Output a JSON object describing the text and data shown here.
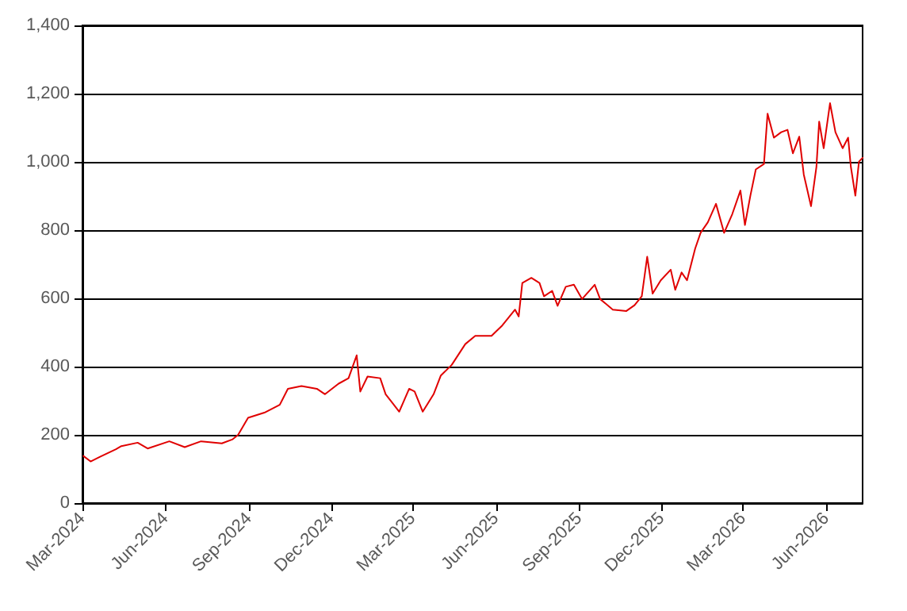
{
  "chart_data": {
    "type": "line",
    "xlim": [
      "2024-03-01",
      "2026-07-11"
    ],
    "ylim": [
      0,
      1400
    ],
    "xticks": [
      {
        "value": "2024-03-01",
        "label": "Mar-2024"
      },
      {
        "value": "2024-06-01",
        "label": "Jun-2024"
      },
      {
        "value": "2024-09-01",
        "label": "Sep-2024"
      },
      {
        "value": "2024-12-01",
        "label": "Dec-2024"
      },
      {
        "value": "2025-03-01",
        "label": "Mar-2025"
      },
      {
        "value": "2025-06-01",
        "label": "Jun-2025"
      },
      {
        "value": "2025-09-01",
        "label": "Sep-2025"
      },
      {
        "value": "2025-12-01",
        "label": "Dec-2025"
      },
      {
        "value": "2026-03-01",
        "label": "Mar-2026"
      },
      {
        "value": "2026-06-01",
        "label": "Jun-2026"
      }
    ],
    "yticks": [
      0,
      200,
      400,
      600,
      800,
      {
        "value": 1000,
        "label": "1,000"
      },
      {
        "value": 1200,
        "label": "1,200"
      },
      {
        "value": 1400,
        "label": "1,400"
      }
    ],
    "grid": "y",
    "marker": "none",
    "line_style": "solid",
    "x": [
      "2024-03-02",
      "2024-03-10",
      "2024-03-20",
      "2024-04-07",
      "2024-04-13",
      "2024-05-01",
      "2024-05-12",
      "2024-06-05",
      "2024-06-22",
      "2024-07-10",
      "2024-08-02",
      "2024-08-14",
      "2024-08-20",
      "2024-08-31",
      "2024-09-18",
      "2024-10-05",
      "2024-10-14",
      "2024-10-29",
      "2024-11-15",
      "2024-11-24",
      "2024-12-09",
      "2024-12-20",
      "2024-12-29",
      "2025-01-02",
      "2025-01-10",
      "2025-01-24",
      "2025-01-30",
      "2025-02-14",
      "2025-02-25",
      "2025-03-03",
      "2025-03-12",
      "2025-03-24",
      "2025-04-01",
      "2025-04-13",
      "2025-04-28",
      "2025-05-09",
      "2025-05-27",
      "2025-06-08",
      "2025-06-22",
      "2025-06-26",
      "2025-06-30",
      "2025-07-10",
      "2025-07-19",
      "2025-07-24",
      "2025-08-02",
      "2025-08-08",
      "2025-08-17",
      "2025-08-26",
      "2025-09-04",
      "2025-09-18",
      "2025-09-24",
      "2025-10-08",
      "2025-10-23",
      "2025-11-01",
      "2025-11-09",
      "2025-11-15",
      "2025-11-21",
      "2025-11-30",
      "2025-12-11",
      "2025-12-16",
      "2025-12-23",
      "2025-12-29",
      "2026-01-07",
      "2026-01-13",
      "2026-01-21",
      "2026-01-30",
      "2026-02-08",
      "2026-02-17",
      "2026-02-26",
      "2026-03-03",
      "2026-03-09",
      "2026-03-15",
      "2026-03-24",
      "2026-03-28",
      "2026-04-04",
      "2026-04-12",
      "2026-04-19",
      "2026-04-25",
      "2026-05-02",
      "2026-05-07",
      "2026-05-15",
      "2026-05-21",
      "2026-05-24",
      "2026-05-29",
      "2026-06-05",
      "2026-06-11",
      "2026-06-19",
      "2026-06-25",
      "2026-06-28",
      "2026-07-03",
      "2026-07-07",
      "2026-07-11"
    ],
    "series": [
      {
        "color": "#e00000",
        "values": [
          138,
          122,
          135,
          158,
          167,
          177,
          160,
          181,
          164,
          181,
          175,
          187,
          200,
          250,
          265,
          288,
          335,
          343,
          335,
          319,
          350,
          366,
          433,
          327,
          371,
          366,
          319,
          268,
          335,
          327,
          268,
          319,
          374,
          405,
          466,
          490,
          490,
          521,
          567,
          547,
          645,
          660,
          645,
          606,
          622,
          578,
          634,
          640,
          598,
          640,
          598,
          567,
          563,
          580,
          606,
          722,
          614,
          653,
          684,
          625,
          676,
          653,
          746,
          792,
          823,
          877,
          792,
          847,
          916,
          815,
          901,
          978,
          994,
          1141,
          1071,
          1087,
          1094,
          1025,
          1074,
          963,
          870,
          986,
          1118,
          1040,
          1172,
          1087,
          1040,
          1071,
          986,
          901,
          1001,
          1012
        ]
      }
    ]
  }
}
